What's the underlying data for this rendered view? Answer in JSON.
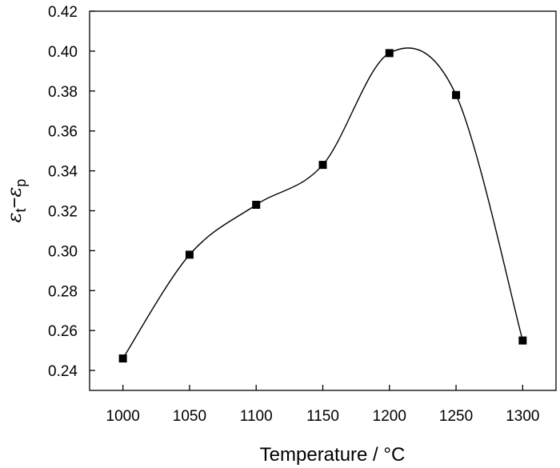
{
  "chart_data": {
    "type": "scatter",
    "title": "",
    "xlabel": "Temperature / °C",
    "ylabel": {
      "main": "ε",
      "sub_t": "t",
      "minus": "−",
      "sub_p": "p"
    },
    "xlim": [
      975,
      1325
    ],
    "ylim": [
      0.23,
      0.42
    ],
    "x_ticks": [
      1000,
      1050,
      1100,
      1150,
      1200,
      1250,
      1300
    ],
    "y_ticks": [
      0.24,
      0.26,
      0.28,
      0.3,
      0.32,
      0.34,
      0.36,
      0.38,
      0.4,
      0.42
    ],
    "y_tick_labels": [
      "0.24",
      "0.26",
      "0.28",
      "0.30",
      "0.32",
      "0.34",
      "0.36",
      "0.38",
      "0.40",
      "0.42"
    ],
    "x_tick_labels": [
      "1000",
      "1050",
      "1100",
      "1150",
      "1200",
      "1250",
      "1300"
    ],
    "grid": false,
    "legend": "none",
    "series": [
      {
        "marker": "square",
        "color": "#000000",
        "smooth_curve": true,
        "points": [
          {
            "x": 1000,
            "y": 0.246
          },
          {
            "x": 1050,
            "y": 0.298
          },
          {
            "x": 1100,
            "y": 0.323
          },
          {
            "x": 1150,
            "y": 0.343
          },
          {
            "x": 1200,
            "y": 0.399
          },
          {
            "x": 1250,
            "y": 0.378
          },
          {
            "x": 1300,
            "y": 0.255
          }
        ]
      }
    ]
  }
}
